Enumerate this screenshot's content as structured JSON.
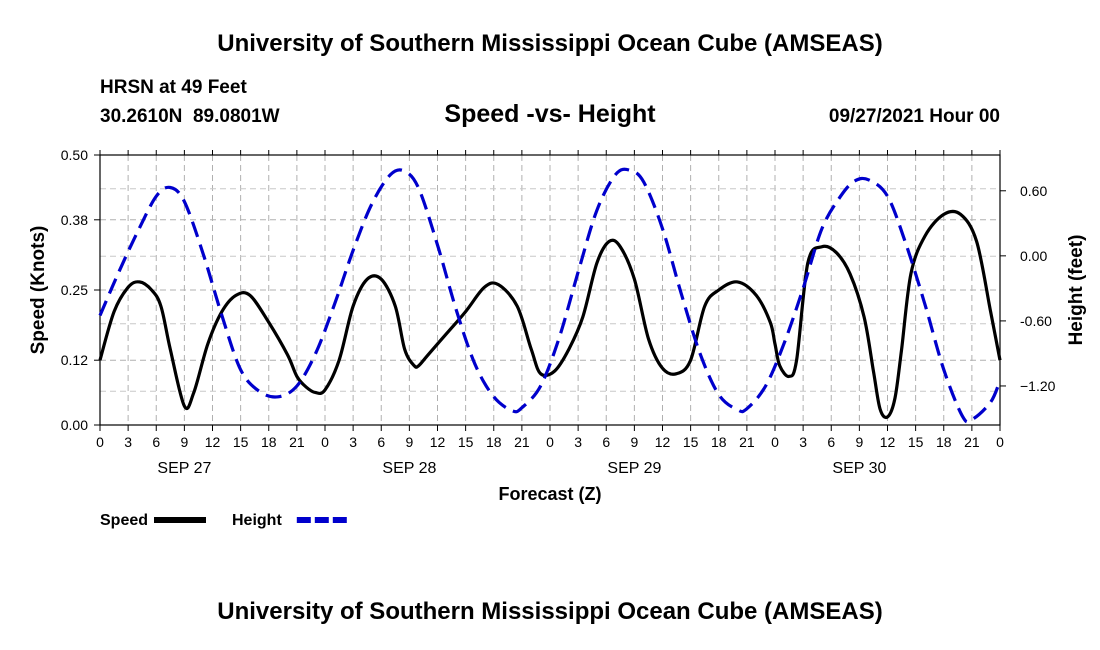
{
  "header": {
    "title_top": "University of Southern Mississippi Ocean Cube (AMSEAS)",
    "station": "HRSN at 49 Feet",
    "coords": "30.2610N  89.0801W",
    "chart_title": "Speed -vs- Height",
    "datetime": "09/27/2021 Hour 00"
  },
  "footer": {
    "title_bottom": "University of Southern Mississippi Ocean Cube (AMSEAS)"
  },
  "chart_data": {
    "type": "line",
    "title": "Speed -vs- Height",
    "xlabel": "Forecast (Z)",
    "ylabel_left": "Speed (Knots)",
    "ylabel_right": "Height (feet)",
    "x_range": [
      0,
      96
    ],
    "xticks": [
      "0",
      "3",
      "6",
      "9",
      "12",
      "15",
      "18",
      "21",
      "0",
      "3",
      "6",
      "9",
      "12",
      "15",
      "18",
      "21",
      "0",
      "3",
      "6",
      "9",
      "12",
      "15",
      "18",
      "21",
      "0",
      "3",
      "6",
      "9",
      "12",
      "15",
      "18",
      "21",
      "0"
    ],
    "day_labels": [
      {
        "label": "SEP 27",
        "hour": 9
      },
      {
        "label": "SEP 28",
        "hour": 33
      },
      {
        "label": "SEP 29",
        "hour": 57
      },
      {
        "label": "SEP 30",
        "hour": 81
      }
    ],
    "ylim_left": [
      0,
      0.5
    ],
    "yticks_left": [
      "0.00",
      "0.12",
      "0.25",
      "0.38",
      "0.50"
    ],
    "ylim_right": [
      -1.56,
      0.93
    ],
    "yticks_right": [
      {
        "label": "0.60",
        "value": 0.6
      },
      {
        "label": "0.00",
        "value": 0.0
      },
      {
        "label": "-0.60",
        "value": -0.6
      },
      {
        "label": "−1.20",
        "value": -1.2
      }
    ],
    "grid": true,
    "series": [
      {
        "name": "Speed",
        "axis": "left",
        "color": "#000000",
        "style": "solid",
        "x": [
          0,
          1.5,
          3,
          4.2,
          5.5,
          6.5,
          7.5,
          9,
          10,
          11.5,
          13,
          14.5,
          16,
          18,
          20,
          21,
          22,
          23,
          24,
          25.5,
          27,
          28.5,
          30,
          31.5,
          32.5,
          33.5,
          34,
          35,
          37,
          39,
          41,
          42.5,
          44.5,
          46,
          47,
          48.5,
          50,
          51.5,
          53,
          54.3,
          55.5,
          57,
          58.5,
          60,
          61.5,
          63,
          64.5,
          66,
          68,
          70,
          71.5,
          72,
          72.5,
          73.5,
          74.3,
          75.5,
          77,
          78.5,
          80,
          81.5,
          82.5,
          83.2,
          84,
          84.8,
          85.5,
          86.5,
          88,
          90,
          91.8,
          93.5,
          95,
          96
        ],
        "y": [
          0.12,
          0.21,
          0.255,
          0.265,
          0.25,
          0.22,
          0.14,
          0.035,
          0.06,
          0.15,
          0.21,
          0.24,
          0.24,
          0.19,
          0.13,
          0.09,
          0.07,
          0.06,
          0.065,
          0.12,
          0.22,
          0.27,
          0.27,
          0.22,
          0.14,
          0.11,
          0.11,
          0.13,
          0.17,
          0.21,
          0.255,
          0.26,
          0.22,
          0.14,
          0.095,
          0.1,
          0.14,
          0.2,
          0.3,
          0.34,
          0.33,
          0.27,
          0.16,
          0.105,
          0.095,
          0.12,
          0.22,
          0.25,
          0.265,
          0.24,
          0.19,
          0.15,
          0.11,
          0.09,
          0.12,
          0.3,
          0.33,
          0.32,
          0.28,
          0.2,
          0.1,
          0.03,
          0.015,
          0.05,
          0.14,
          0.28,
          0.35,
          0.39,
          0.39,
          0.34,
          0.21,
          0.12
        ]
      },
      {
        "name": "Height",
        "axis": "right",
        "color": "#0000cc",
        "style": "dashed",
        "x": [
          0,
          2,
          4,
          6,
          7.5,
          9,
          11,
          13,
          15,
          17,
          19,
          21,
          23,
          25,
          27,
          29,
          31,
          32.5,
          34,
          36,
          38,
          40,
          42,
          44,
          45,
          47,
          49,
          51,
          53,
          55,
          56.5,
          58,
          60,
          62,
          64,
          66,
          68,
          69,
          71,
          73,
          75,
          77,
          79,
          80.5,
          82,
          84,
          86,
          88,
          90,
          92,
          93,
          95,
          96
        ],
        "y": [
          -0.55,
          -0.15,
          0.22,
          0.55,
          0.63,
          0.5,
          0.02,
          -0.55,
          -1.05,
          -1.25,
          -1.3,
          -1.2,
          -0.9,
          -0.45,
          0.05,
          0.48,
          0.75,
          0.78,
          0.62,
          0.1,
          -0.5,
          -1.0,
          -1.3,
          -1.43,
          -1.4,
          -1.2,
          -0.75,
          -0.15,
          0.42,
          0.75,
          0.79,
          0.68,
          0.25,
          -0.35,
          -0.9,
          -1.28,
          -1.42,
          -1.41,
          -1.2,
          -0.8,
          -0.3,
          0.25,
          0.55,
          0.69,
          0.7,
          0.55,
          0.1,
          -0.45,
          -1.05,
          -1.48,
          -1.51,
          -1.35,
          -1.15
        ]
      }
    ],
    "legend": {
      "placement": "bottom-left",
      "items": [
        {
          "label": "Speed",
          "color": "#000000",
          "style": "solid"
        },
        {
          "label": "Height",
          "color": "#0000cc",
          "style": "dashed"
        }
      ]
    }
  }
}
